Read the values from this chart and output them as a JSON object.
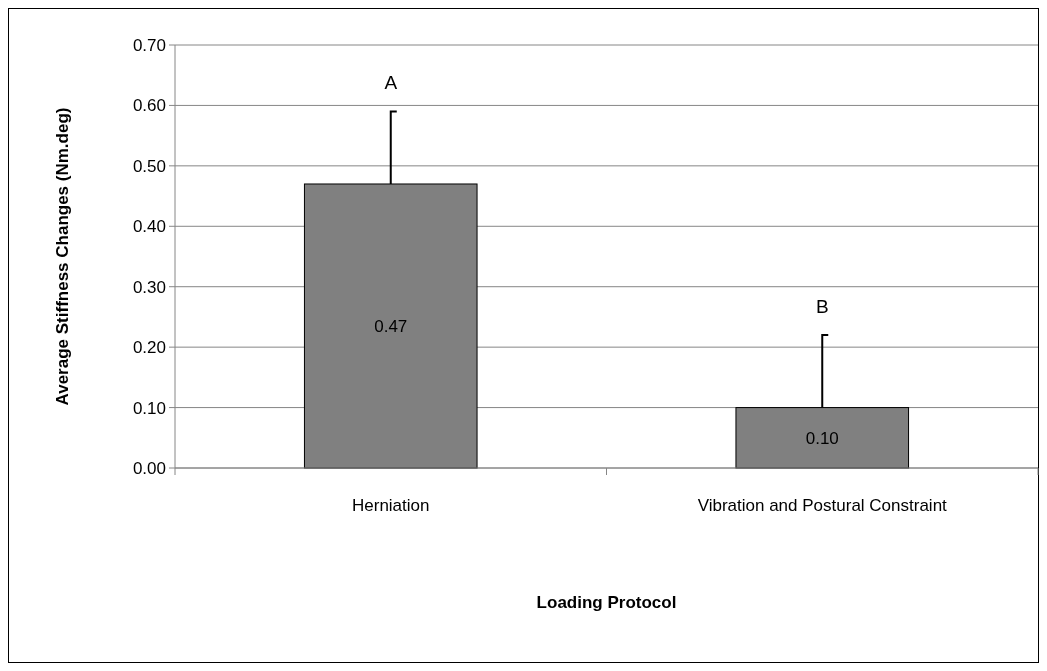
{
  "chart_data": {
    "type": "bar",
    "xlabel": "Loading Protocol",
    "ylabel": "Average Stiffness Changes (Nm.deg)",
    "categories": [
      "Herniation",
      "Vibration and Postural Constraint"
    ],
    "values": [
      0.47,
      0.1
    ],
    "color": "#808080",
    "errors": [
      [
        0.47,
        0.59
      ],
      [
        0.1,
        0.22
      ]
    ],
    "value_labels": [
      "0.47",
      "0.10"
    ],
    "ylim": [
      0,
      0.7
    ],
    "yticks": [
      {
        "value": 0,
        "label": "0.00"
      },
      {
        "value": 0.1,
        "label": "0.10"
      },
      {
        "value": 0.2,
        "label": "0.20"
      },
      {
        "value": 0.3,
        "label": "0.30"
      },
      {
        "value": 0.4,
        "label": "0.40"
      },
      {
        "value": 0.5,
        "label": "0.50"
      },
      {
        "value": 0.6,
        "label": "0.60"
      },
      {
        "value": 0.7,
        "label": "0.70"
      }
    ],
    "grid": "y",
    "annotations": [
      "A",
      "B"
    ]
  }
}
